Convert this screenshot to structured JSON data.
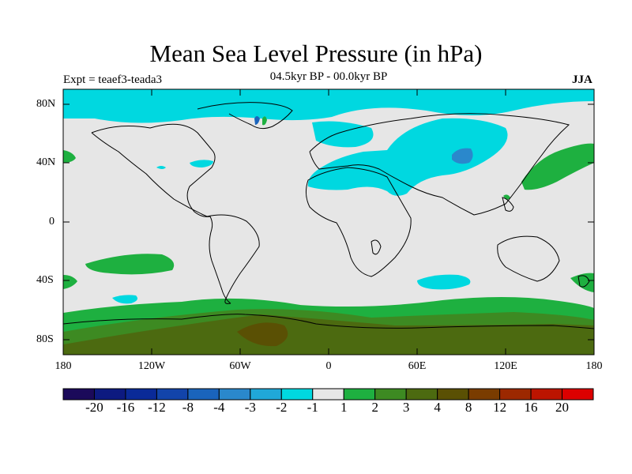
{
  "title": "Mean Sea Level Pressure (in hPa)",
  "left_subtitle": "Expt = teaef3-teada3",
  "center_subtitle": "04.5kyr BP - 00.0kyr BP",
  "right_subtitle": "JJA",
  "lat_labels": [
    "80N",
    "40N",
    "0",
    "40S",
    "80S"
  ],
  "lon_labels": [
    "180",
    "120W",
    "60W",
    "0",
    "60E",
    "120E",
    "180"
  ],
  "colorbar": {
    "colors": [
      "#1b0a5a",
      "#0d1a80",
      "#0a2a98",
      "#1244aa",
      "#1a64bc",
      "#2a88cc",
      "#20a8d8",
      "#00d8e0",
      "#e6e6e6",
      "#1eb040",
      "#3d8a22",
      "#4c6a10",
      "#5a5004",
      "#7a3c00",
      "#9c2800",
      "#bc1400",
      "#dc0000"
    ],
    "labels": [
      "-20",
      "-16",
      "-12",
      "-8",
      "-4",
      "-3",
      "-2",
      "-1",
      "1",
      "2",
      "3",
      "4",
      "8",
      "12",
      "16",
      "20"
    ]
  }
}
